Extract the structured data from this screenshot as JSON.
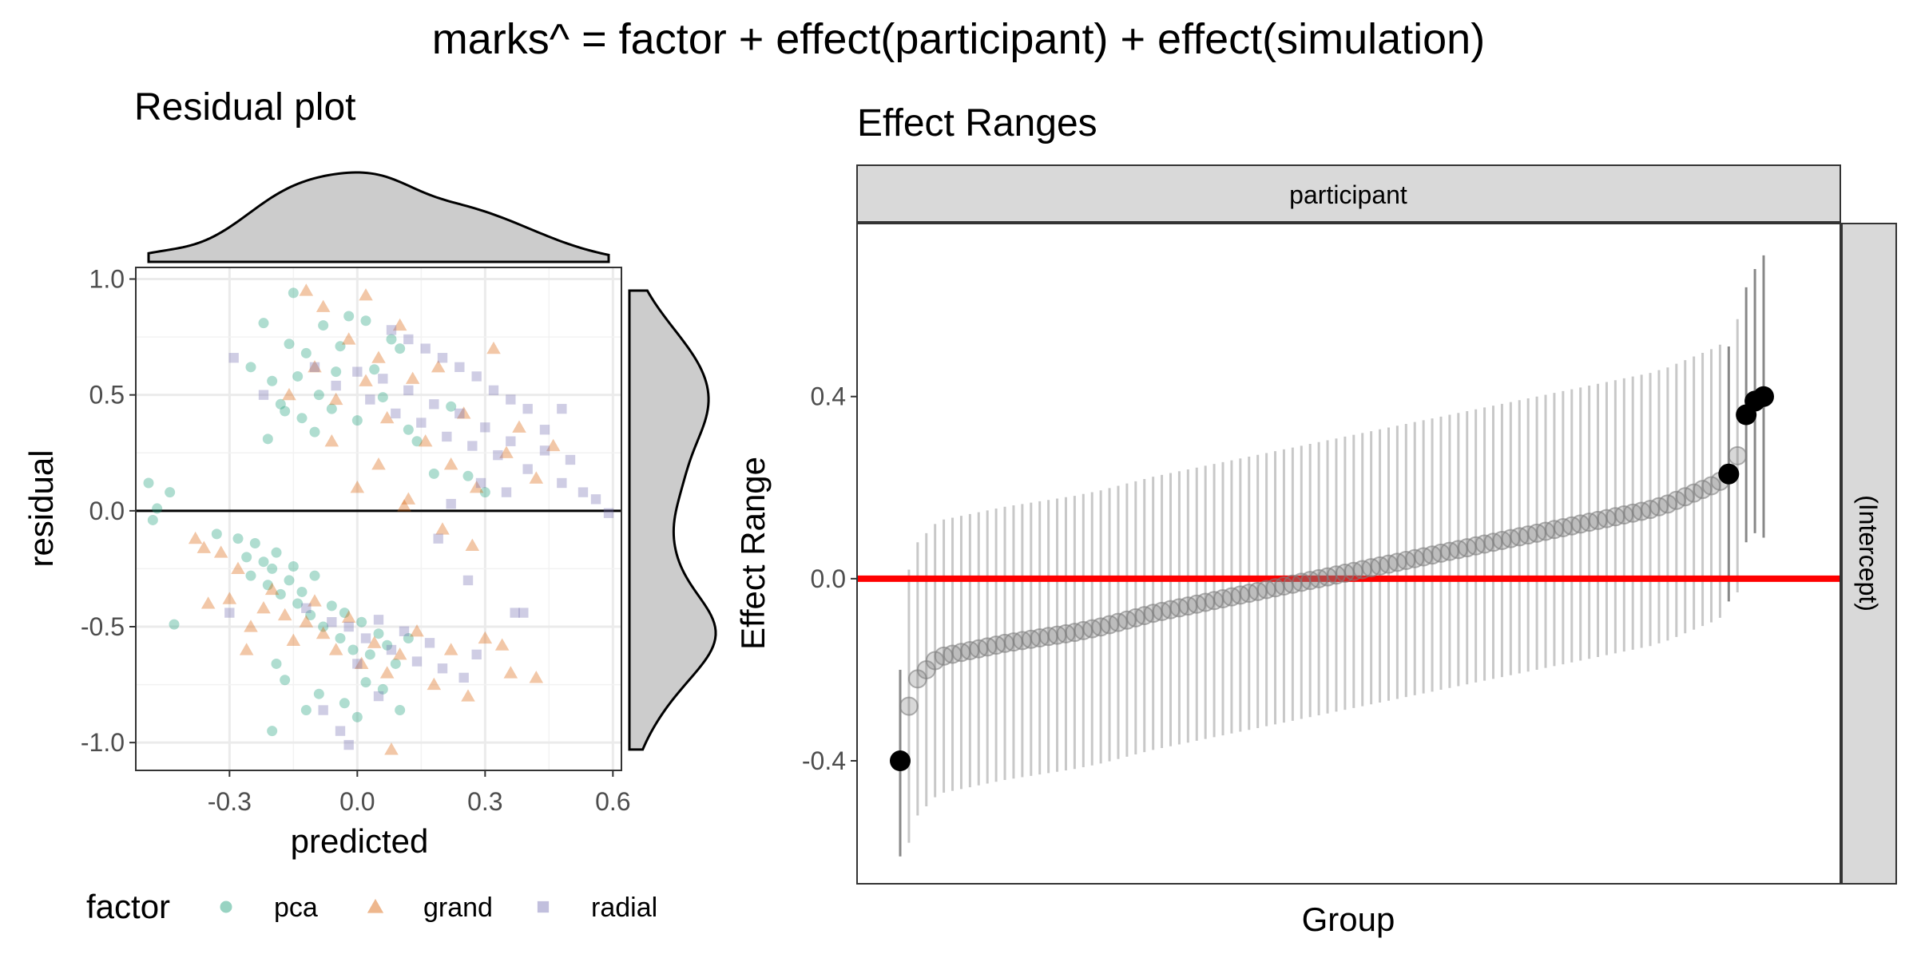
{
  "figure": {
    "title": "marks^ = factor + effect(participant) + effect(simulation)"
  },
  "chart_data": [
    {
      "type": "scatter",
      "title": "Residual plot",
      "xlabel": "predicted",
      "ylabel": "residual",
      "xlim": [
        -0.52,
        0.62
      ],
      "ylim": [
        -1.12,
        1.05
      ],
      "xticks": [
        -0.3,
        0.0,
        0.3,
        0.6
      ],
      "xtick_labels": [
        "-0.3",
        "0.0",
        "0.3",
        "0.6"
      ],
      "yticks": [
        -1.0,
        -0.5,
        0.0,
        0.5,
        1.0
      ],
      "ytick_labels": [
        "-1.0",
        "-0.5",
        "0.0",
        "0.5",
        "1.0"
      ],
      "grid": true,
      "reference_line": {
        "y": 0
      },
      "marginal_density": {
        "x": true,
        "y": true,
        "fill": "#cccccc"
      },
      "legend": {
        "title": "factor",
        "position": "bottom",
        "entries": [
          {
            "label": "pca",
            "shape": "circle",
            "color": "#1B9E77"
          },
          {
            "label": "grand",
            "shape": "triangle",
            "color": "#D95F02"
          },
          {
            "label": "radial",
            "shape": "square",
            "color": "#7570B3"
          }
        ]
      },
      "series": [
        {
          "name": "pca",
          "color": "#1B9E77",
          "shape": "circle",
          "points": [
            [
              -0.49,
              0.12
            ],
            [
              -0.48,
              -0.04
            ],
            [
              -0.47,
              0.01
            ],
            [
              -0.44,
              0.08
            ],
            [
              -0.43,
              -0.49
            ],
            [
              -0.33,
              -0.1
            ],
            [
              -0.25,
              0.62
            ],
            [
              -0.22,
              0.81
            ],
            [
              -0.21,
              0.31
            ],
            [
              -0.2,
              0.56
            ],
            [
              -0.18,
              0.46
            ],
            [
              -0.17,
              0.43
            ],
            [
              -0.16,
              0.72
            ],
            [
              -0.15,
              0.94
            ],
            [
              -0.14,
              0.58
            ],
            [
              -0.13,
              0.4
            ],
            [
              -0.12,
              0.68
            ],
            [
              -0.1,
              0.34
            ],
            [
              -0.09,
              0.5
            ],
            [
              -0.08,
              0.8
            ],
            [
              -0.06,
              0.44
            ],
            [
              -0.05,
              0.6
            ],
            [
              -0.04,
              0.71
            ],
            [
              -0.02,
              0.84
            ],
            [
              0.0,
              0.39
            ],
            [
              0.02,
              0.82
            ],
            [
              0.04,
              0.61
            ],
            [
              0.06,
              0.49
            ],
            [
              0.08,
              0.74
            ],
            [
              0.1,
              0.7
            ],
            [
              0.12,
              0.35
            ],
            [
              0.14,
              0.3
            ],
            [
              0.18,
              0.16
            ],
            [
              0.22,
              0.45
            ],
            [
              0.26,
              0.15
            ],
            [
              0.3,
              0.08
            ],
            [
              -0.28,
              -0.12
            ],
            [
              -0.26,
              -0.2
            ],
            [
              -0.25,
              -0.28
            ],
            [
              -0.24,
              -0.14
            ],
            [
              -0.22,
              -0.22
            ],
            [
              -0.21,
              -0.32
            ],
            [
              -0.2,
              -0.25
            ],
            [
              -0.19,
              -0.18
            ],
            [
              -0.18,
              -0.36
            ],
            [
              -0.16,
              -0.3
            ],
            [
              -0.15,
              -0.24
            ],
            [
              -0.14,
              -0.4
            ],
            [
              -0.13,
              -0.35
            ],
            [
              -0.11,
              -0.45
            ],
            [
              -0.1,
              -0.28
            ],
            [
              -0.08,
              -0.5
            ],
            [
              -0.06,
              -0.41
            ],
            [
              -0.04,
              -0.55
            ],
            [
              -0.03,
              -0.44
            ],
            [
              -0.01,
              -0.6
            ],
            [
              0.01,
              -0.48
            ],
            [
              0.03,
              -0.62
            ],
            [
              0.05,
              -0.53
            ],
            [
              0.07,
              -0.58
            ],
            [
              0.09,
              -0.66
            ],
            [
              0.12,
              -0.55
            ],
            [
              -0.19,
              -0.66
            ],
            [
              -0.17,
              -0.73
            ],
            [
              -0.12,
              -0.86
            ],
            [
              -0.09,
              -0.79
            ],
            [
              -0.03,
              -0.83
            ],
            [
              0.02,
              -0.74
            ],
            [
              0.06,
              -0.77
            ],
            [
              0.1,
              -0.86
            ],
            [
              -0.2,
              -0.95
            ],
            [
              0.0,
              -0.89
            ]
          ]
        },
        {
          "name": "grand",
          "color": "#D95F02",
          "shape": "triangle",
          "points": [
            [
              -0.38,
              -0.12
            ],
            [
              -0.36,
              -0.16
            ],
            [
              -0.32,
              -0.18
            ],
            [
              -0.3,
              -0.38
            ],
            [
              -0.28,
              -0.25
            ],
            [
              -0.25,
              -0.5
            ],
            [
              -0.22,
              -0.42
            ],
            [
              -0.2,
              -0.34
            ],
            [
              -0.17,
              -0.45
            ],
            [
              -0.15,
              -0.56
            ],
            [
              -0.12,
              -0.48
            ],
            [
              -0.1,
              -0.39
            ],
            [
              -0.08,
              -0.53
            ],
            [
              -0.05,
              -0.6
            ],
            [
              -0.02,
              -0.46
            ],
            [
              0.01,
              -0.66
            ],
            [
              0.04,
              -0.57
            ],
            [
              0.07,
              -0.7
            ],
            [
              0.1,
              -0.62
            ],
            [
              0.14,
              -0.52
            ],
            [
              0.18,
              -0.75
            ],
            [
              0.22,
              -0.6
            ],
            [
              0.26,
              -0.8
            ],
            [
              0.3,
              -0.55
            ],
            [
              0.36,
              -0.7
            ],
            [
              0.42,
              -0.72
            ],
            [
              0.08,
              -1.03
            ],
            [
              -0.12,
              0.95
            ],
            [
              -0.1,
              0.62
            ],
            [
              -0.08,
              0.88
            ],
            [
              -0.05,
              0.48
            ],
            [
              -0.02,
              0.74
            ],
            [
              0.02,
              0.56
            ],
            [
              0.02,
              0.93
            ],
            [
              0.05,
              0.66
            ],
            [
              0.07,
              0.4
            ],
            [
              0.1,
              0.8
            ],
            [
              0.13,
              0.57
            ],
            [
              0.16,
              0.3
            ],
            [
              0.19,
              0.62
            ],
            [
              0.22,
              0.2
            ],
            [
              0.25,
              0.42
            ],
            [
              0.28,
              0.1
            ],
            [
              0.32,
              0.7
            ],
            [
              0.35,
              0.25
            ],
            [
              0.38,
              0.36
            ],
            [
              0.42,
              0.14
            ],
            [
              0.46,
              0.28
            ],
            [
              -0.16,
              0.5
            ],
            [
              -0.06,
              0.3
            ],
            [
              0.0,
              0.1
            ],
            [
              0.12,
              0.05
            ],
            [
              0.2,
              -0.08
            ],
            [
              0.27,
              -0.15
            ],
            [
              -0.35,
              -0.4
            ],
            [
              -0.26,
              -0.6
            ],
            [
              0.34,
              -0.58
            ],
            [
              0.11,
              0.02
            ],
            [
              0.05,
              0.2
            ]
          ]
        },
        {
          "name": "radial",
          "color": "#7570B3",
          "shape": "square",
          "points": [
            [
              -0.3,
              -0.44
            ],
            [
              -0.29,
              0.66
            ],
            [
              -0.22,
              0.5
            ],
            [
              -0.1,
              0.62
            ],
            [
              -0.05,
              0.54
            ],
            [
              0.0,
              0.6
            ],
            [
              0.03,
              0.48
            ],
            [
              0.06,
              0.57
            ],
            [
              0.09,
              0.42
            ],
            [
              0.12,
              0.52
            ],
            [
              0.15,
              0.38
            ],
            [
              0.18,
              0.46
            ],
            [
              0.21,
              0.32
            ],
            [
              0.24,
              0.42
            ],
            [
              0.27,
              0.28
            ],
            [
              0.3,
              0.36
            ],
            [
              0.33,
              0.24
            ],
            [
              0.36,
              0.3
            ],
            [
              0.4,
              0.18
            ],
            [
              0.44,
              0.26
            ],
            [
              0.48,
              0.12
            ],
            [
              0.5,
              0.22
            ],
            [
              0.53,
              0.08
            ],
            [
              0.56,
              0.05
            ],
            [
              0.59,
              -0.01
            ],
            [
              0.48,
              0.44
            ],
            [
              0.44,
              0.35
            ],
            [
              0.4,
              0.44
            ],
            [
              0.36,
              0.48
            ],
            [
              0.32,
              0.52
            ],
            [
              0.28,
              0.58
            ],
            [
              0.24,
              0.62
            ],
            [
              0.2,
              0.66
            ],
            [
              0.16,
              0.7
            ],
            [
              0.12,
              0.74
            ],
            [
              0.08,
              0.78
            ],
            [
              -0.12,
              -0.42
            ],
            [
              -0.06,
              -0.48
            ],
            [
              -0.02,
              -0.5
            ],
            [
              0.02,
              -0.55
            ],
            [
              0.05,
              -0.47
            ],
            [
              0.08,
              -0.6
            ],
            [
              0.11,
              -0.52
            ],
            [
              0.14,
              -0.65
            ],
            [
              0.17,
              -0.57
            ],
            [
              0.2,
              -0.68
            ],
            [
              0.25,
              -0.72
            ],
            [
              0.28,
              -0.62
            ],
            [
              0.37,
              -0.44
            ],
            [
              0.39,
              -0.44
            ],
            [
              -0.08,
              -0.86
            ],
            [
              -0.04,
              -0.95
            ],
            [
              -0.02,
              -1.01
            ],
            [
              0.05,
              -0.8
            ],
            [
              0.0,
              -0.66
            ],
            [
              0.29,
              0.12
            ],
            [
              0.22,
              0.03
            ],
            [
              0.19,
              -0.12
            ],
            [
              0.35,
              0.08
            ],
            [
              0.26,
              -0.3
            ]
          ]
        }
      ]
    },
    {
      "type": "scatter",
      "title": "Effect Ranges",
      "xlabel": "Group",
      "ylabel": "Effect Range",
      "facet_top": "participant",
      "facet_right": "(Intercept)",
      "ylim": [
        -0.67,
        0.78
      ],
      "yticks": [
        -0.4,
        0.0,
        0.4
      ],
      "ytick_labels": [
        "-0.4",
        "0.0",
        "0.4"
      ],
      "grid": false,
      "reference_line": {
        "y": 0,
        "color": "#ff0000"
      },
      "n_groups": 100,
      "interval_halfwidth": 0.3,
      "interval_color": "#c8c8c8",
      "highlight_color": "#000000",
      "highlighted": [
        {
          "group": 1,
          "effect": -0.4,
          "lower": -0.61,
          "upper": -0.2
        },
        {
          "group": 96,
          "effect": 0.23,
          "lower": -0.05,
          "upper": 0.51
        },
        {
          "group": 98,
          "effect": 0.36,
          "lower": 0.08,
          "upper": 0.64
        },
        {
          "group": 99,
          "effect": 0.39,
          "lower": 0.1,
          "upper": 0.68
        },
        {
          "group": 100,
          "effect": 0.4,
          "lower": 0.09,
          "upper": 0.71
        }
      ],
      "effects": [
        -0.4,
        -0.28,
        -0.22,
        -0.2,
        -0.18,
        -0.17,
        -0.166,
        -0.162,
        -0.158,
        -0.154,
        -0.15,
        -0.146,
        -0.142,
        -0.139,
        -0.136,
        -0.133,
        -0.13,
        -0.127,
        -0.124,
        -0.121,
        -0.118,
        -0.114,
        -0.11,
        -0.106,
        -0.101,
        -0.096,
        -0.091,
        -0.086,
        -0.081,
        -0.076,
        -0.072,
        -0.068,
        -0.064,
        -0.06,
        -0.056,
        -0.052,
        -0.048,
        -0.044,
        -0.04,
        -0.036,
        -0.032,
        -0.028,
        -0.024,
        -0.02,
        -0.016,
        -0.012,
        -0.008,
        -0.004,
        0.0,
        0.004,
        0.008,
        0.012,
        0.016,
        0.02,
        0.024,
        0.028,
        0.032,
        0.036,
        0.04,
        0.044,
        0.048,
        0.052,
        0.056,
        0.06,
        0.064,
        0.068,
        0.072,
        0.076,
        0.08,
        0.084,
        0.088,
        0.092,
        0.096,
        0.1,
        0.104,
        0.108,
        0.112,
        0.116,
        0.12,
        0.124,
        0.128,
        0.132,
        0.136,
        0.14,
        0.144,
        0.148,
        0.152,
        0.158,
        0.164,
        0.172,
        0.18,
        0.188,
        0.196,
        0.204,
        0.214,
        0.23,
        0.27,
        0.36,
        0.39,
        0.4
      ]
    }
  ]
}
